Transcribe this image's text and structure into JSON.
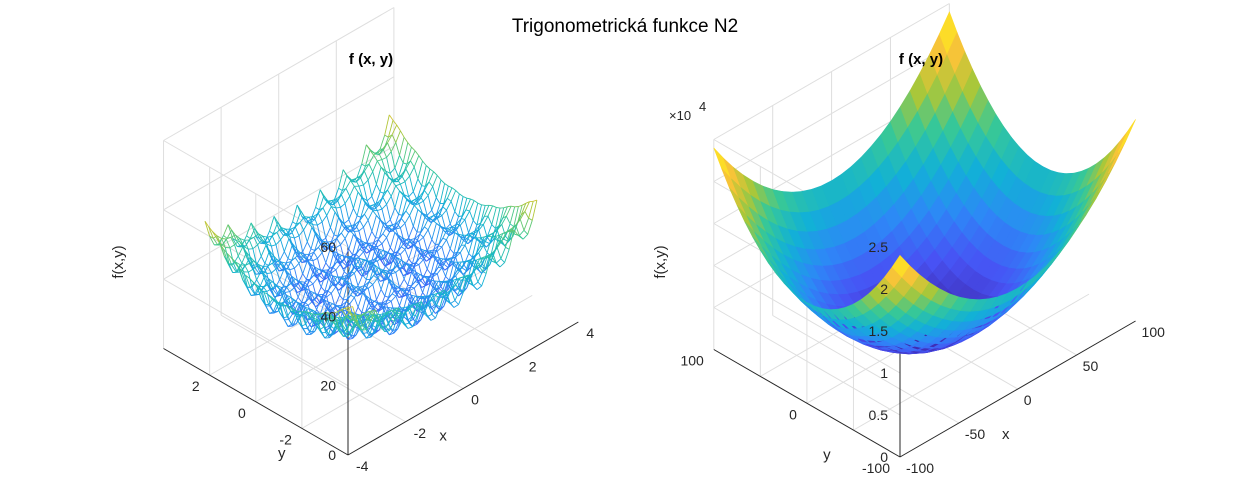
{
  "figure": {
    "suptitle": "Trigonometrická funkce N2"
  },
  "chart_data": [
    {
      "type": "mesh",
      "title": "f (x, y)",
      "xlabel": "x",
      "ylabel": "y",
      "zlabel": "f(x,y)",
      "xlim": [
        -4,
        4
      ],
      "ylim": [
        -4,
        4
      ],
      "zlim": [
        0,
        60
      ],
      "xticks": [
        "-4",
        "-2",
        "0",
        "2",
        "4"
      ],
      "yticks": [
        "-2",
        "0",
        "2"
      ],
      "zticks": [
        "0",
        "20",
        "40",
        "60"
      ],
      "surface": {
        "z_range_shown": [
          5,
          44
        ],
        "peak_center": [
          0,
          0
        ],
        "colormap": "parula"
      },
      "grid": true
    },
    {
      "type": "surface",
      "title": "f (x, y)",
      "xlabel": "x",
      "ylabel": "y",
      "zlabel": "f(x,y)",
      "xlim": [
        -100,
        100
      ],
      "ylim": [
        -100,
        100
      ],
      "zlim": [
        0,
        25000
      ],
      "xticks": [
        "-100",
        "-50",
        "0",
        "50",
        "100"
      ],
      "yticks": [
        "-100",
        "0",
        "100"
      ],
      "zticks": [
        "0",
        "0.5",
        "1",
        "1.5",
        "2",
        "2.5"
      ],
      "z_exponent_base": "×10",
      "z_exponent": "4",
      "surface": {
        "z_at_corners": 24000,
        "z_at_center": 0,
        "colormap": "parula"
      },
      "grid": true
    }
  ]
}
